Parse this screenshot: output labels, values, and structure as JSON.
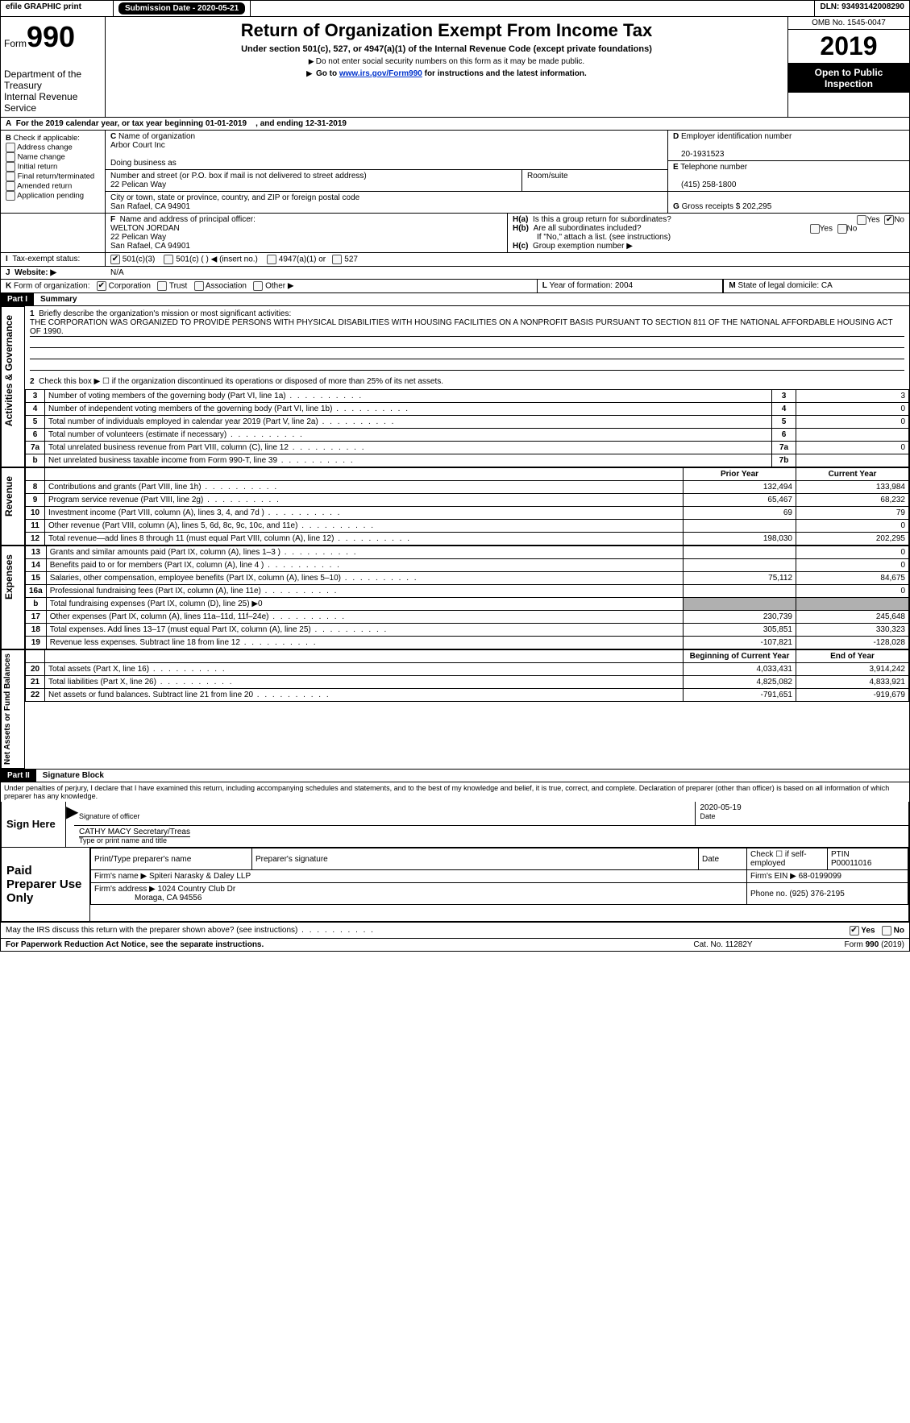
{
  "top": {
    "efile": "efile GRAPHIC print",
    "submission_label": "Submission Date - 2020-05-21",
    "dln": "DLN: 93493142008290"
  },
  "header": {
    "form_prefix": "Form",
    "form_number": "990",
    "dept": "Department of the Treasury",
    "irs": "Internal Revenue Service",
    "main_title": "Return of Organization Exempt From Income Tax",
    "sub1": "Under section 501(c), 527, or 4947(a)(1) of the Internal Revenue Code (except private foundations)",
    "sub2": "Do not enter social security numbers on this form as it may be made public.",
    "sub3_a": "Go to ",
    "sub3_link": "www.irs.gov/Form990",
    "sub3_b": " for instructions and the latest information.",
    "omb": "OMB No. 1545-0047",
    "year": "2019",
    "open": "Open to Public",
    "inspect": "Inspection"
  },
  "A": {
    "line": "For the 2019 calendar year, or tax year beginning 01-01-2019",
    "end": ", and ending 12-31-2019"
  },
  "B": {
    "label": "Check if applicable:",
    "opts": [
      "Address change",
      "Name change",
      "Initial return",
      "Final return/terminated",
      "Amended return",
      "Application pending"
    ]
  },
  "C": {
    "name_label": "Name of organization",
    "name": "Arbor Court Inc",
    "dba_label": "Doing business as",
    "dba": "",
    "addr_label": "Number and street (or P.O. box if mail is not delivered to street address)",
    "room_label": "Room/suite",
    "addr": "22 Pelican Way",
    "city_label": "City or town, state or province, country, and ZIP or foreign postal code",
    "city": "San Rafael, CA  94901"
  },
  "D": {
    "label": "Employer identification number",
    "val": "20-1931523"
  },
  "E": {
    "label": "Telephone number",
    "val": "(415) 258-1800"
  },
  "G": {
    "label": "Gross receipts $",
    "val": "202,295"
  },
  "F": {
    "label": "Name and address of principal officer:",
    "name": "WELTON JORDAN",
    "addr": "22 Pelican Way",
    "city": "San Rafael, CA  94901"
  },
  "H": {
    "a": "Is this a group return for subordinates?",
    "b": "Are all subordinates included?",
    "b_note": "If \"No,\" attach a list. (see instructions)",
    "c": "Group exemption number ▶",
    "yes": "Yes",
    "no": "No"
  },
  "I": {
    "label": "Tax-exempt status:",
    "o1": "501(c)(3)",
    "o2": "501(c) (  ) ◀ (insert no.)",
    "o3": "4947(a)(1) or",
    "o4": "527"
  },
  "J": {
    "label": "Website: ▶",
    "val": "N/A"
  },
  "K": {
    "label": "Form of organization:",
    "o1": "Corporation",
    "o2": "Trust",
    "o3": "Association",
    "o4": "Other ▶"
  },
  "L": {
    "label": "Year of formation:",
    "val": "2004"
  },
  "M": {
    "label": "State of legal domicile:",
    "val": "CA"
  },
  "part1": {
    "bar": "Part I",
    "title": "Summary"
  },
  "summary": {
    "line1_label": "Briefly describe the organization's mission or most significant activities:",
    "line1_text": "THE CORPORATION WAS ORGANIZED TO PROVIDE PERSONS WITH PHYSICAL DISABILITIES WITH HOUSING FACILITIES ON A NONPROFIT BASIS PURSUANT TO SECTION 811 OF THE NATIONAL AFFORDABLE HOUSING ACT OF 1990.",
    "line2": "Check this box ▶ ☐ if the organization discontinued its operations or disposed of more than 25% of its net assets.",
    "rows_ag": [
      {
        "n": "3",
        "t": "Number of voting members of the governing body (Part VI, line 1a)",
        "idx": "3",
        "v": "3"
      },
      {
        "n": "4",
        "t": "Number of independent voting members of the governing body (Part VI, line 1b)",
        "idx": "4",
        "v": "0"
      },
      {
        "n": "5",
        "t": "Total number of individuals employed in calendar year 2019 (Part V, line 2a)",
        "idx": "5",
        "v": "0"
      },
      {
        "n": "6",
        "t": "Total number of volunteers (estimate if necessary)",
        "idx": "6",
        "v": ""
      },
      {
        "n": "7a",
        "t": "Total unrelated business revenue from Part VIII, column (C), line 12",
        "idx": "7a",
        "v": "0"
      },
      {
        "n": "b",
        "t": "Net unrelated business taxable income from Form 990-T, line 39",
        "idx": "7b",
        "v": ""
      }
    ],
    "col_prior": "Prior Year",
    "col_current": "Current Year",
    "rows_rev": [
      {
        "n": "8",
        "t": "Contributions and grants (Part VIII, line 1h)",
        "p": "132,494",
        "c": "133,984"
      },
      {
        "n": "9",
        "t": "Program service revenue (Part VIII, line 2g)",
        "p": "65,467",
        "c": "68,232"
      },
      {
        "n": "10",
        "t": "Investment income (Part VIII, column (A), lines 3, 4, and 7d )",
        "p": "69",
        "c": "79"
      },
      {
        "n": "11",
        "t": "Other revenue (Part VIII, column (A), lines 5, 6d, 8c, 9c, 10c, and 11e)",
        "p": "",
        "c": "0"
      },
      {
        "n": "12",
        "t": "Total revenue—add lines 8 through 11 (must equal Part VIII, column (A), line 12)",
        "p": "198,030",
        "c": "202,295"
      }
    ],
    "rows_exp": [
      {
        "n": "13",
        "t": "Grants and similar amounts paid (Part IX, column (A), lines 1–3 )",
        "p": "",
        "c": "0"
      },
      {
        "n": "14",
        "t": "Benefits paid to or for members (Part IX, column (A), line 4 )",
        "p": "",
        "c": "0"
      },
      {
        "n": "15",
        "t": "Salaries, other compensation, employee benefits (Part IX, column (A), lines 5–10)",
        "p": "75,112",
        "c": "84,675"
      },
      {
        "n": "16a",
        "t": "Professional fundraising fees (Part IX, column (A), line 11e)",
        "p": "",
        "c": "0"
      },
      {
        "n": "b",
        "t": "Total fundraising expenses (Part IX, column (D), line 25) ▶0",
        "shade": true
      },
      {
        "n": "17",
        "t": "Other expenses (Part IX, column (A), lines 11a–11d, 11f–24e)",
        "p": "230,739",
        "c": "245,648"
      },
      {
        "n": "18",
        "t": "Total expenses. Add lines 13–17 (must equal Part IX, column (A), line 25)",
        "p": "305,851",
        "c": "330,323"
      },
      {
        "n": "19",
        "t": "Revenue less expenses. Subtract line 18 from line 12",
        "p": "-107,821",
        "c": "-128,028"
      }
    ],
    "col_begin": "Beginning of Current Year",
    "col_end": "End of Year",
    "rows_na": [
      {
        "n": "20",
        "t": "Total assets (Part X, line 16)",
        "p": "4,033,431",
        "c": "3,914,242"
      },
      {
        "n": "21",
        "t": "Total liabilities (Part X, line 26)",
        "p": "4,825,082",
        "c": "4,833,921"
      },
      {
        "n": "22",
        "t": "Net assets or fund balances. Subtract line 21 from line 20",
        "p": "-791,651",
        "c": "-919,679"
      }
    ],
    "side_ag": "Activities & Governance",
    "side_rev": "Revenue",
    "side_exp": "Expenses",
    "side_na": "Net Assets or Fund Balances"
  },
  "part2": {
    "bar": "Part II",
    "title": "Signature Block"
  },
  "sign": {
    "decl": "Under penalties of perjury, I declare that I have examined this return, including accompanying schedules and statements, and to the best of my knowledge and belief, it is true, correct, and complete. Declaration of preparer (other than officer) is based on all information of which preparer has any knowledge.",
    "here": "Sign Here",
    "sig_label": "Signature of officer",
    "date_label": "Date",
    "date": "2020-05-19",
    "name": "CATHY MACY Secretary/Treas",
    "name_label": "Type or print name and title"
  },
  "prep": {
    "label": "Paid Preparer Use Only",
    "c1": "Print/Type preparer's name",
    "c2": "Preparer's signature",
    "c3": "Date",
    "c4a": "Check ☐ if self-employed",
    "c5": "PTIN",
    "ptin": "P00011016",
    "firm_label": "Firm's name  ▶",
    "firm": "Spiteri Narasky & Daley LLP",
    "ein_label": "Firm's EIN ▶",
    "ein": "68-0199099",
    "addr_label": "Firm's address ▶",
    "addr1": "1024 Country Club Dr",
    "addr2": "Moraga, CA  94556",
    "phone_label": "Phone no.",
    "phone": "(925) 376-2195"
  },
  "footer": {
    "q": "May the IRS discuss this return with the preparer shown above? (see instructions)",
    "yes": "Yes",
    "no": "No",
    "notice": "For Paperwork Reduction Act Notice, see the separate instructions.",
    "cat": "Cat. No. 11282Y",
    "form": "Form 990 (2019)"
  }
}
